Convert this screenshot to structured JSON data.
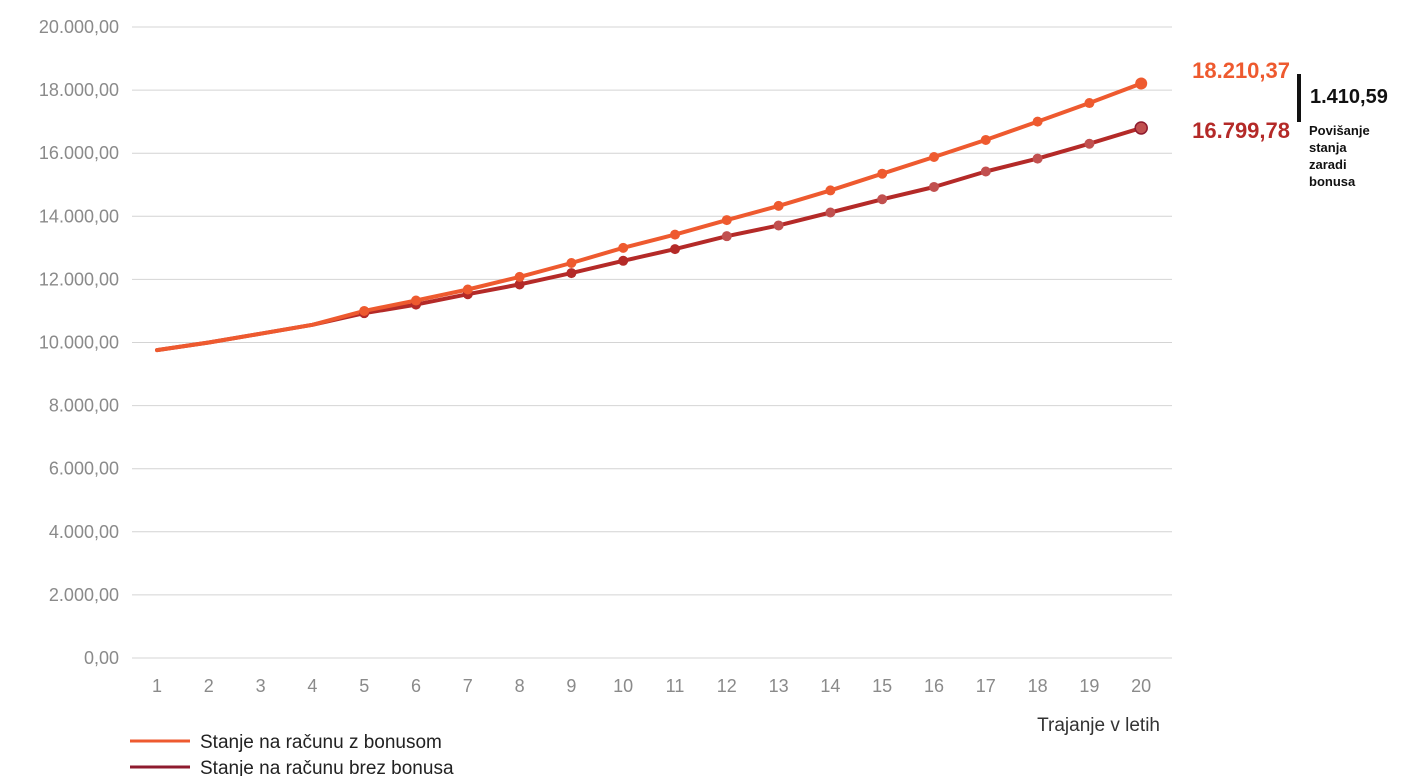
{
  "chart_data": {
    "type": "line",
    "xlabel": "Trajanje v letih",
    "ylabel": "",
    "ylim": [
      0,
      20000
    ],
    "yticks": [
      "0,00",
      "2.000,00",
      "4.000,00",
      "6.000,00",
      "8.000,00",
      "10.000,00",
      "12.000,00",
      "14.000,00",
      "16.000,00",
      "18.000,00",
      "20.000,00"
    ],
    "categories": [
      "1",
      "2",
      "3",
      "4",
      "5",
      "6",
      "7",
      "8",
      "9",
      "10",
      "11",
      "12",
      "13",
      "14",
      "15",
      "16",
      "17",
      "18",
      "19",
      "20"
    ],
    "grid": true,
    "legend_position": "bottom-left",
    "series": [
      {
        "name": "Stanje na računu z bonusom",
        "color": "#ee5a2f",
        "values": [
          9760,
          10000,
          10280,
          10560,
          11000,
          11330,
          11680,
          12080,
          12520,
          13000,
          13420,
          13880,
          14330,
          14820,
          15350,
          15880,
          16420,
          17000,
          17590,
          18210.37
        ],
        "markers_from": 5,
        "end_label": "18.210,37"
      },
      {
        "name": "Stanje na računu brez bonusa",
        "color": "#b42a28",
        "values": [
          9760,
          10000,
          10280,
          10560,
          10930,
          11200,
          11530,
          11840,
          12200,
          12590,
          12960,
          13370,
          13710,
          14120,
          14540,
          14930,
          15420,
          15830,
          16300,
          16799.78
        ],
        "markers_from": 5,
        "end_label": "16.799,78"
      }
    ],
    "annotation": {
      "difference": "1.410,59",
      "note_lines": [
        "Povišanje",
        "stanja",
        "zaradi",
        "bonusa"
      ]
    }
  }
}
